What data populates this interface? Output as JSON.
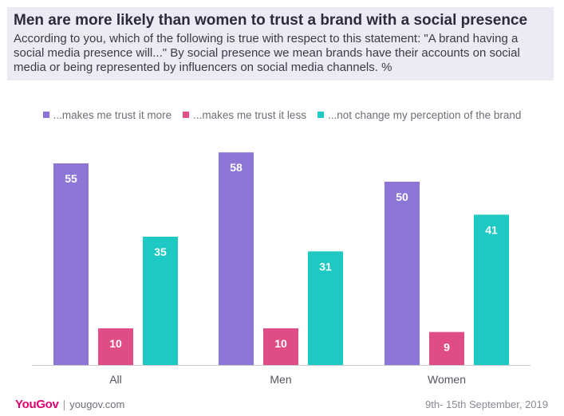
{
  "header": {
    "title": "Men are more likely than women to trust a brand with a social presence",
    "subtitle": "According to you, which of the following is true with respect to this statement: \"A brand having a social media presence will...\" By social presence we mean brands have their accounts on social media or being represented by influencers on social media channels. %"
  },
  "legend": [
    {
      "label": "...makes me trust it more",
      "color": "#8e76d6"
    },
    {
      "label": "...makes me trust it less",
      "color": "#e04c86"
    },
    {
      "label": "...not change my perception of the brand",
      "color": "#1ec8c3"
    }
  ],
  "chart_data": {
    "type": "bar",
    "categories": [
      "All",
      "Men",
      "Women"
    ],
    "series": [
      {
        "name": "...makes me trust it more",
        "values": [
          55,
          58,
          50
        ],
        "color": "#8e76d6"
      },
      {
        "name": "...makes me trust it less",
        "values": [
          10,
          10,
          9
        ],
        "color": "#e04c86"
      },
      {
        "name": "...not change my perception of the brand",
        "values": [
          35,
          31,
          41
        ],
        "color": "#1ec8c3"
      }
    ],
    "ylim": [
      0,
      60
    ],
    "grid": false,
    "legend_position": "top"
  },
  "footer": {
    "logo": "YouGov",
    "separator": "|",
    "site": "yougov.com",
    "date": "9th- 15th September, 2019"
  }
}
